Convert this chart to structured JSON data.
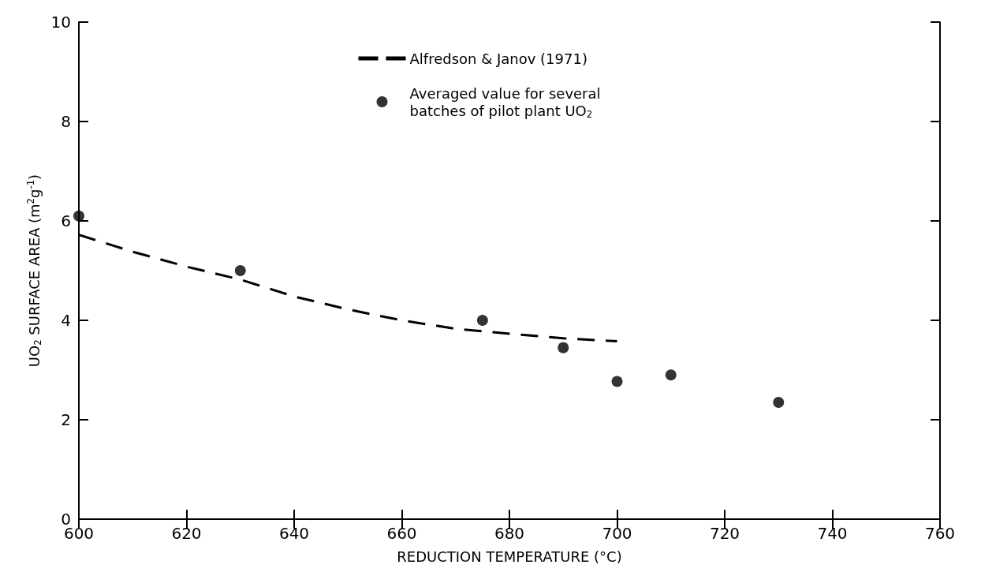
{
  "chart_data": {
    "type": "scatter",
    "xlabel": "REDUCTION TEMPERATURE (°C)",
    "ylabel": "UO$_{2}$ SURFACE AREA (m$^{2}$g$^{-1}$)",
    "xlim": [
      600,
      760
    ],
    "xticks": [
      600,
      620,
      640,
      660,
      680,
      700,
      720,
      740,
      760
    ],
    "ylim": [
      0,
      10
    ],
    "yticks": [
      0,
      2,
      4,
      6,
      8,
      10
    ],
    "grid": false,
    "legend": "top",
    "series": [
      {
        "name": "Alfredson & Janov (1971)",
        "type": "line",
        "line_style": "dashed",
        "marker": "none",
        "color": "#000000",
        "x": [
          600,
          610,
          620,
          630,
          640,
          650,
          660,
          670,
          680,
          690,
          700
        ],
        "values": [
          5.72,
          5.38,
          5.08,
          4.82,
          4.48,
          4.22,
          4.0,
          3.83,
          3.73,
          3.64,
          3.58
        ]
      },
      {
        "name": "Averaged value for several batches of pilot plant UO$_{2}$",
        "marker": "circle",
        "color": "#000000",
        "x": [
          600,
          630,
          675,
          690,
          700,
          710,
          730
        ],
        "values": [
          6.1,
          5.0,
          4.0,
          3.45,
          2.77,
          2.9,
          2.35
        ]
      }
    ]
  }
}
